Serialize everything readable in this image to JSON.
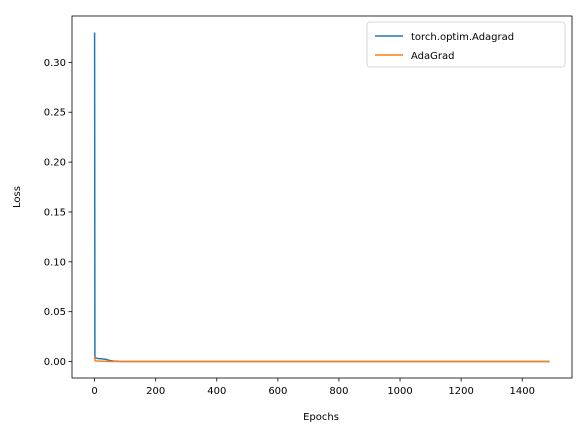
{
  "chart_data": {
    "type": "line",
    "title": "",
    "xlabel": "Epochs",
    "ylabel": "Loss",
    "xlim": [
      -74,
      1563
    ],
    "ylim": [
      -0.0165,
      0.3465
    ],
    "x_ticks": [
      0,
      200,
      400,
      600,
      800,
      1000,
      1200,
      1400
    ],
    "y_ticks": [
      0.0,
      0.05,
      0.1,
      0.15,
      0.2,
      0.25,
      0.3
    ],
    "x_tick_labels": [
      "0",
      "200",
      "400",
      "600",
      "800",
      "1000",
      "1200",
      "1400"
    ],
    "y_tick_labels": [
      "0.00",
      "0.05",
      "0.10",
      "0.15",
      "0.20",
      "0.25",
      "0.30"
    ],
    "grid": false,
    "legend_position": "top-right",
    "series": [
      {
        "name": "torch.optim.Adagrad",
        "color": "#1f77b4",
        "x": [
          0,
          1,
          2,
          5,
          10,
          20,
          30,
          40,
          50,
          60,
          80,
          100,
          200,
          400,
          600,
          800,
          1000,
          1200,
          1400,
          1489
        ],
        "y": [
          0.33,
          0.005,
          0.004,
          0.0035,
          0.003,
          0.0028,
          0.0025,
          0.002,
          0.001,
          0.0005,
          0.0002,
          0.0001,
          0.0,
          0.0,
          0.0,
          0.0,
          0.0,
          0.0,
          0.0,
          0.0
        ]
      },
      {
        "name": "AdaGrad",
        "color": "#ff7f0e",
        "x": [
          0,
          1,
          2,
          5,
          10,
          20,
          40,
          60,
          100,
          200,
          400,
          600,
          800,
          1000,
          1200,
          1400,
          1489
        ],
        "y": [
          0.005,
          0.001,
          0.0008,
          0.0006,
          0.0005,
          0.0004,
          0.0002,
          0.0001,
          0.0,
          0.0,
          0.0,
          0.0,
          0.0,
          0.0,
          0.0,
          0.0,
          0.0
        ]
      }
    ]
  }
}
